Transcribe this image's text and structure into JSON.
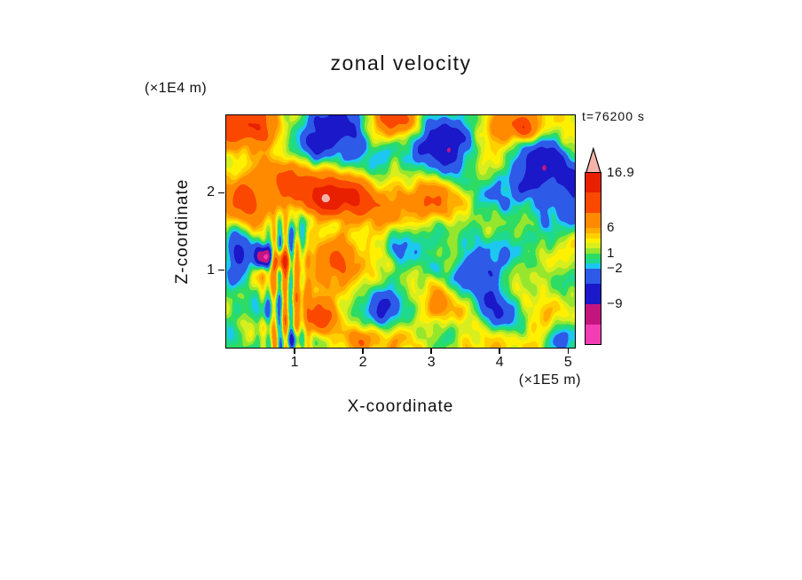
{
  "title": "zonal velocity",
  "labels": {
    "y_unit": "(×1E4 m)",
    "x_unit": "(×1E5 m)",
    "x_axis": "X-coordinate",
    "y_axis": "Z-coordinate",
    "time": "t=76200 s"
  },
  "chart_data": {
    "type": "heatmap",
    "title": "zonal velocity",
    "xlabel": "X-coordinate",
    "ylabel": "Z-coordinate",
    "x_unit": "(×1E5 m)",
    "y_unit": "(×1E4 m)",
    "annotation": "t=76200 s",
    "x_range": [
      0,
      5.1
    ],
    "z_range": [
      0,
      3.0
    ],
    "x_ticks": [
      1,
      2,
      3,
      4,
      5
    ],
    "z_ticks": [
      1,
      2
    ],
    "value_range": [
      -16.9,
      16.9
    ],
    "colorbar_labels": [
      "16.9",
      "6",
      "1",
      "−2",
      "−9"
    ],
    "colorbar_label_values": [
      16.9,
      6,
      1,
      -2,
      -9
    ],
    "levels": [
      -13,
      -9,
      -5,
      -2,
      -1,
      0,
      1,
      2,
      3,
      4,
      5,
      6,
      9,
      13
    ],
    "band_colors": [
      "#F43CB4",
      "#C4157F",
      "#1A18C8",
      "#2E5AE8",
      "#1CC8F0",
      "#1FD98F",
      "#2EDC64",
      "#96E62E",
      "#D8EE1E",
      "#FFF000",
      "#FFD000",
      "#FFAC00",
      "#FF8A00",
      "#FB4800",
      "#E82000"
    ],
    "overflow_color": "#F5B4AA",
    "field_approx": {
      "base": 3.3,
      "noise": {
        "seed": 9,
        "n_modes": 42,
        "amp": 1.85
      },
      "striations": {
        "x0": 0.85,
        "width": 0.28,
        "z_top": 1.62,
        "wavelength": 0.17,
        "amp": 5.2
      },
      "features": [
        [
          1.55,
          2.82,
          0.38,
          0.22,
          -11
        ],
        [
          0.55,
          2.8,
          0.3,
          0.2,
          7
        ],
        [
          0.15,
          2.92,
          0.3,
          0.2,
          5
        ],
        [
          2.42,
          2.88,
          0.25,
          0.16,
          8
        ],
        [
          3.3,
          2.72,
          0.38,
          0.24,
          -11.5
        ],
        [
          4.15,
          2.86,
          0.3,
          0.18,
          9
        ],
        [
          4.38,
          2.8,
          0.12,
          0.1,
          6
        ],
        [
          4.7,
          2.45,
          0.22,
          0.3,
          -9
        ],
        [
          5.05,
          2.05,
          0.15,
          0.25,
          -7
        ],
        [
          1.05,
          2.02,
          0.5,
          0.22,
          7.5
        ],
        [
          2.0,
          1.95,
          0.45,
          0.2,
          6.5
        ],
        [
          2.95,
          1.82,
          0.45,
          0.2,
          5.5
        ],
        [
          1.5,
          1.88,
          0.18,
          0.12,
          6
        ],
        [
          4.25,
          1.95,
          0.7,
          0.35,
          -4.2
        ],
        [
          4.5,
          2.2,
          0.3,
          0.2,
          -2.0
        ],
        [
          2.15,
          2.45,
          0.28,
          0.16,
          -4
        ],
        [
          1.15,
          2.55,
          0.3,
          0.15,
          -6
        ],
        [
          2.6,
          2.35,
          0.45,
          0.25,
          -1.5
        ],
        [
          0.3,
          1.95,
          0.2,
          0.3,
          4
        ],
        [
          0.18,
          1.25,
          0.16,
          0.28,
          -10
        ],
        [
          0.55,
          1.17,
          0.1,
          0.1,
          -17
        ],
        [
          0.8,
          1.13,
          0.11,
          0.1,
          12
        ],
        [
          1.65,
          1.05,
          0.4,
          0.22,
          5.5
        ],
        [
          3.2,
          1.15,
          1.1,
          0.45,
          -3.2
        ],
        [
          2.7,
          1.4,
          0.3,
          0.18,
          -2.0
        ],
        [
          3.75,
          0.95,
          0.35,
          0.2,
          -2.0
        ],
        [
          4.5,
          1.35,
          0.3,
          0.2,
          -2.2
        ],
        [
          4.85,
          0.75,
          0.3,
          0.25,
          -2.0
        ],
        [
          2.25,
          0.45,
          0.35,
          0.18,
          -3.0
        ],
        [
          3.15,
          0.3,
          0.3,
          0.15,
          -2.2
        ],
        [
          4.2,
          0.35,
          0.3,
          0.16,
          -2.6
        ],
        [
          4.95,
          0.12,
          0.22,
          0.14,
          -4.5
        ],
        [
          1.38,
          0.34,
          0.22,
          0.14,
          6.2
        ],
        [
          1.92,
          0.12,
          0.22,
          0.12,
          5.5
        ],
        [
          0.45,
          0.5,
          0.14,
          0.12,
          -4.5
        ],
        [
          0.1,
          0.45,
          0.1,
          0.3,
          -3.5
        ],
        [
          0.95,
          0.1,
          0.12,
          0.1,
          -9
        ]
      ]
    }
  }
}
